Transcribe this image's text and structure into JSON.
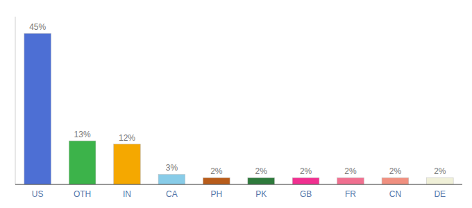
{
  "chart_data": {
    "type": "bar",
    "categories": [
      "US",
      "OTH",
      "IN",
      "CA",
      "PH",
      "PK",
      "GB",
      "FR",
      "CN",
      "DE"
    ],
    "values": [
      45,
      13,
      12,
      3,
      2,
      2,
      2,
      2,
      2,
      2
    ],
    "value_labels": [
      "45%",
      "13%",
      "12%",
      "3%",
      "2%",
      "2%",
      "2%",
      "2%",
      "2%",
      "2%"
    ],
    "colors": [
      "#4d6fd4",
      "#3cb34a",
      "#f5a800",
      "#88cce8",
      "#b85c1a",
      "#2e7a3c",
      "#f03090",
      "#f07090",
      "#f09080",
      "#f0f0d8"
    ],
    "ylim": [
      0,
      50
    ],
    "data_labels": true,
    "tick_labels": "x"
  }
}
